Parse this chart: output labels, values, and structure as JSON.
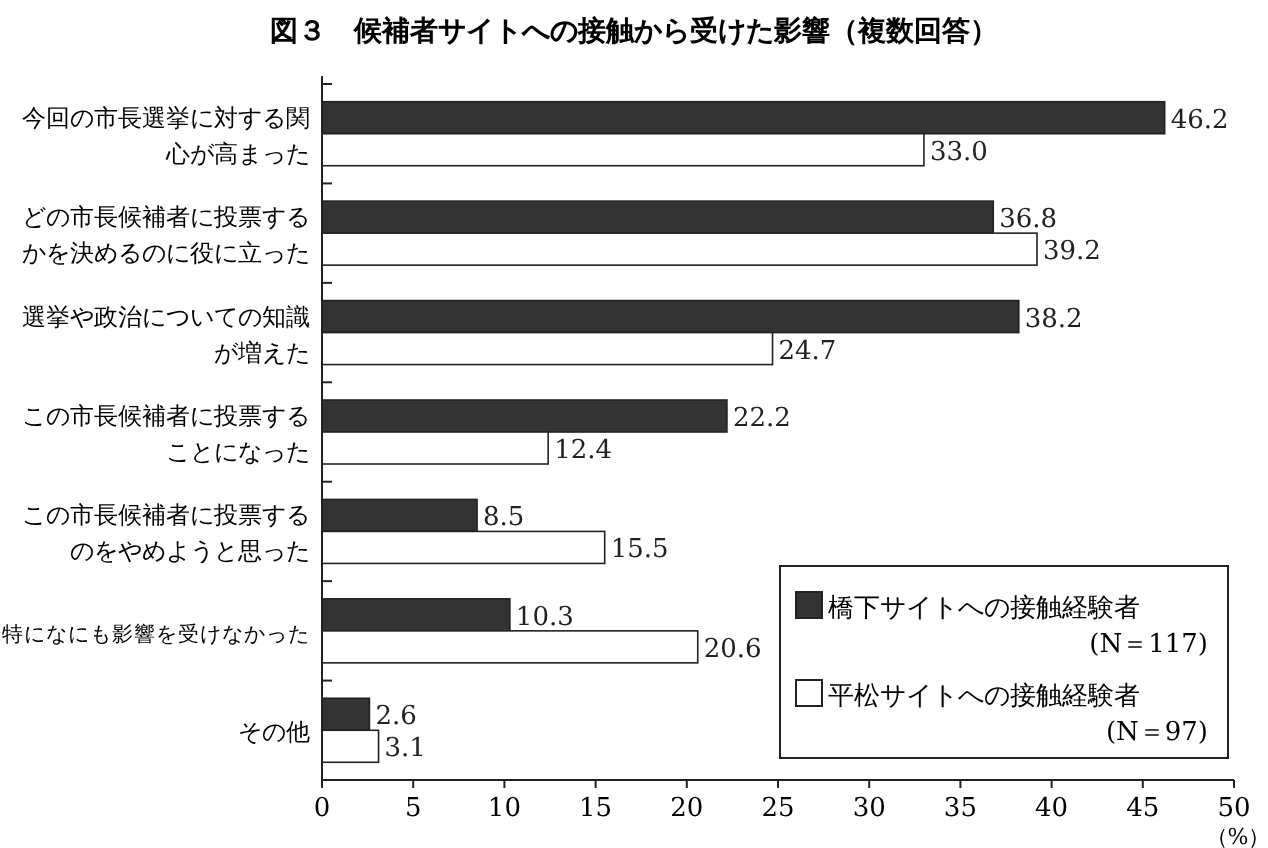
{
  "chart_data": {
    "type": "bar",
    "orientation": "horizontal",
    "title": "図３　候補者サイトへの接触から受けた影響（複数回答）",
    "xlabel": "（%）",
    "categories": [
      "今回の市長選挙に対する関心が高まった",
      "どの市長候補者に投票するかを決めるのに役に立った",
      "選挙や政治についての知識が増えた",
      "この市長候補者に投票することになった",
      "この市長候補者に投票するのをやめようと思った",
      "特になにも影響を受けなかった",
      "その他"
    ],
    "series": [
      {
        "name": "橋下サイトへの接触経験者 (N＝117)",
        "color": "#333333",
        "values": [
          46.2,
          36.8,
          38.2,
          22.2,
          8.5,
          10.3,
          2.6
        ],
        "value_labels": [
          "46.2",
          "36.8",
          "38.2",
          "22.2",
          "8.5",
          "10.3",
          "2.6"
        ]
      },
      {
        "name": "平松サイトへの接触経験者 (N＝97)",
        "color": "#ffffff",
        "values": [
          33.0,
          39.2,
          24.7,
          12.4,
          15.5,
          20.6,
          3.1
        ],
        "value_labels": [
          "33.0",
          "39.2",
          "24.7",
          "12.4",
          "15.5",
          "20.6",
          "3.1"
        ]
      }
    ],
    "xlim": [
      0,
      50
    ],
    "xticks": [
      0,
      5,
      10,
      15,
      20,
      25,
      30,
      35,
      40,
      45,
      50
    ],
    "legend": "bottom right",
    "grid": false
  }
}
